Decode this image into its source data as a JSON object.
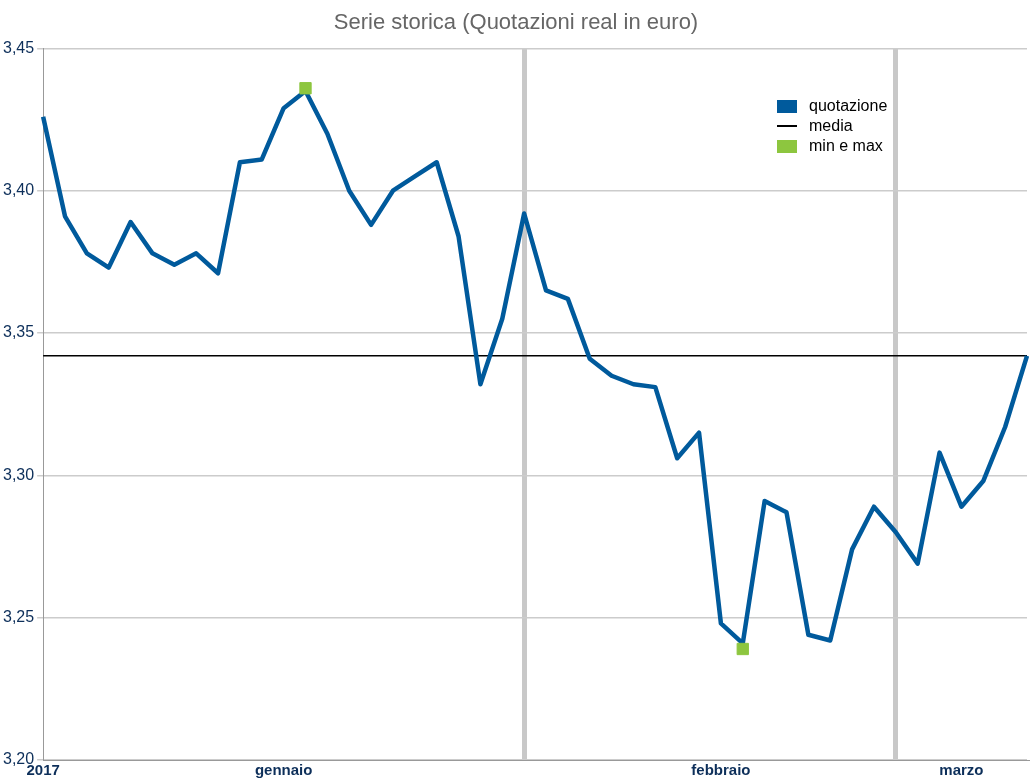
{
  "chart_data": {
    "type": "line",
    "title": "Serie storica (Quotazioni real in euro)",
    "categories": [
      "2017",
      null,
      null,
      null,
      null,
      null,
      null,
      null,
      null,
      null,
      null,
      "gennaio",
      null,
      null,
      null,
      null,
      null,
      null,
      null,
      null,
      null,
      null,
      null,
      null,
      null,
      null,
      null,
      null,
      null,
      null,
      null,
      "febbraio",
      null,
      null,
      null,
      null,
      null,
      null,
      null,
      null,
      null,
      null,
      "marzo",
      null,
      null,
      null
    ],
    "series": [
      {
        "name": "quotazione",
        "color": "#005a9c",
        "values": [
          3.426,
          3.391,
          3.378,
          3.373,
          3.389,
          3.378,
          3.374,
          3.378,
          3.371,
          3.41,
          3.411,
          3.429,
          3.435,
          3.42,
          3.4,
          3.388,
          3.4,
          3.405,
          3.41,
          3.384,
          3.332,
          3.355,
          3.392,
          3.365,
          3.362,
          3.341,
          3.335,
          3.332,
          3.331,
          3.306,
          3.315,
          3.248,
          3.241,
          3.291,
          3.287,
          3.244,
          3.242,
          3.274,
          3.289,
          3.28,
          3.269,
          3.308,
          3.289,
          3.298,
          3.317,
          3.342
        ]
      },
      {
        "name": "min e max",
        "type": "scatter",
        "marker": "square",
        "color": "#8dc63f",
        "values": [
          null,
          null,
          null,
          null,
          null,
          null,
          null,
          null,
          null,
          null,
          null,
          null,
          3.436,
          null,
          null,
          null,
          null,
          null,
          null,
          null,
          null,
          null,
          null,
          null,
          null,
          null,
          null,
          null,
          null,
          null,
          null,
          null,
          3.239,
          null,
          null,
          null,
          null,
          null,
          null,
          null,
          null,
          null,
          null,
          null,
          null,
          null
        ]
      }
    ],
    "ref_lines": [
      {
        "axis": "y",
        "value": 3.342,
        "label": "media",
        "color": "#000000"
      }
    ],
    "ylim": [
      3.2,
      3.45
    ],
    "yticks": [
      {
        "value": 3.2,
        "label": "3,20"
      },
      {
        "value": 3.25,
        "label": "3,25"
      },
      {
        "value": 3.3,
        "label": "3,30"
      },
      {
        "value": 3.35,
        "label": "3,35"
      },
      {
        "value": 3.4,
        "label": "3,40"
      },
      {
        "value": 3.45,
        "label": "3,45"
      }
    ],
    "grid": true,
    "legend": "top right",
    "marker": "none",
    "line_style": "solid"
  }
}
